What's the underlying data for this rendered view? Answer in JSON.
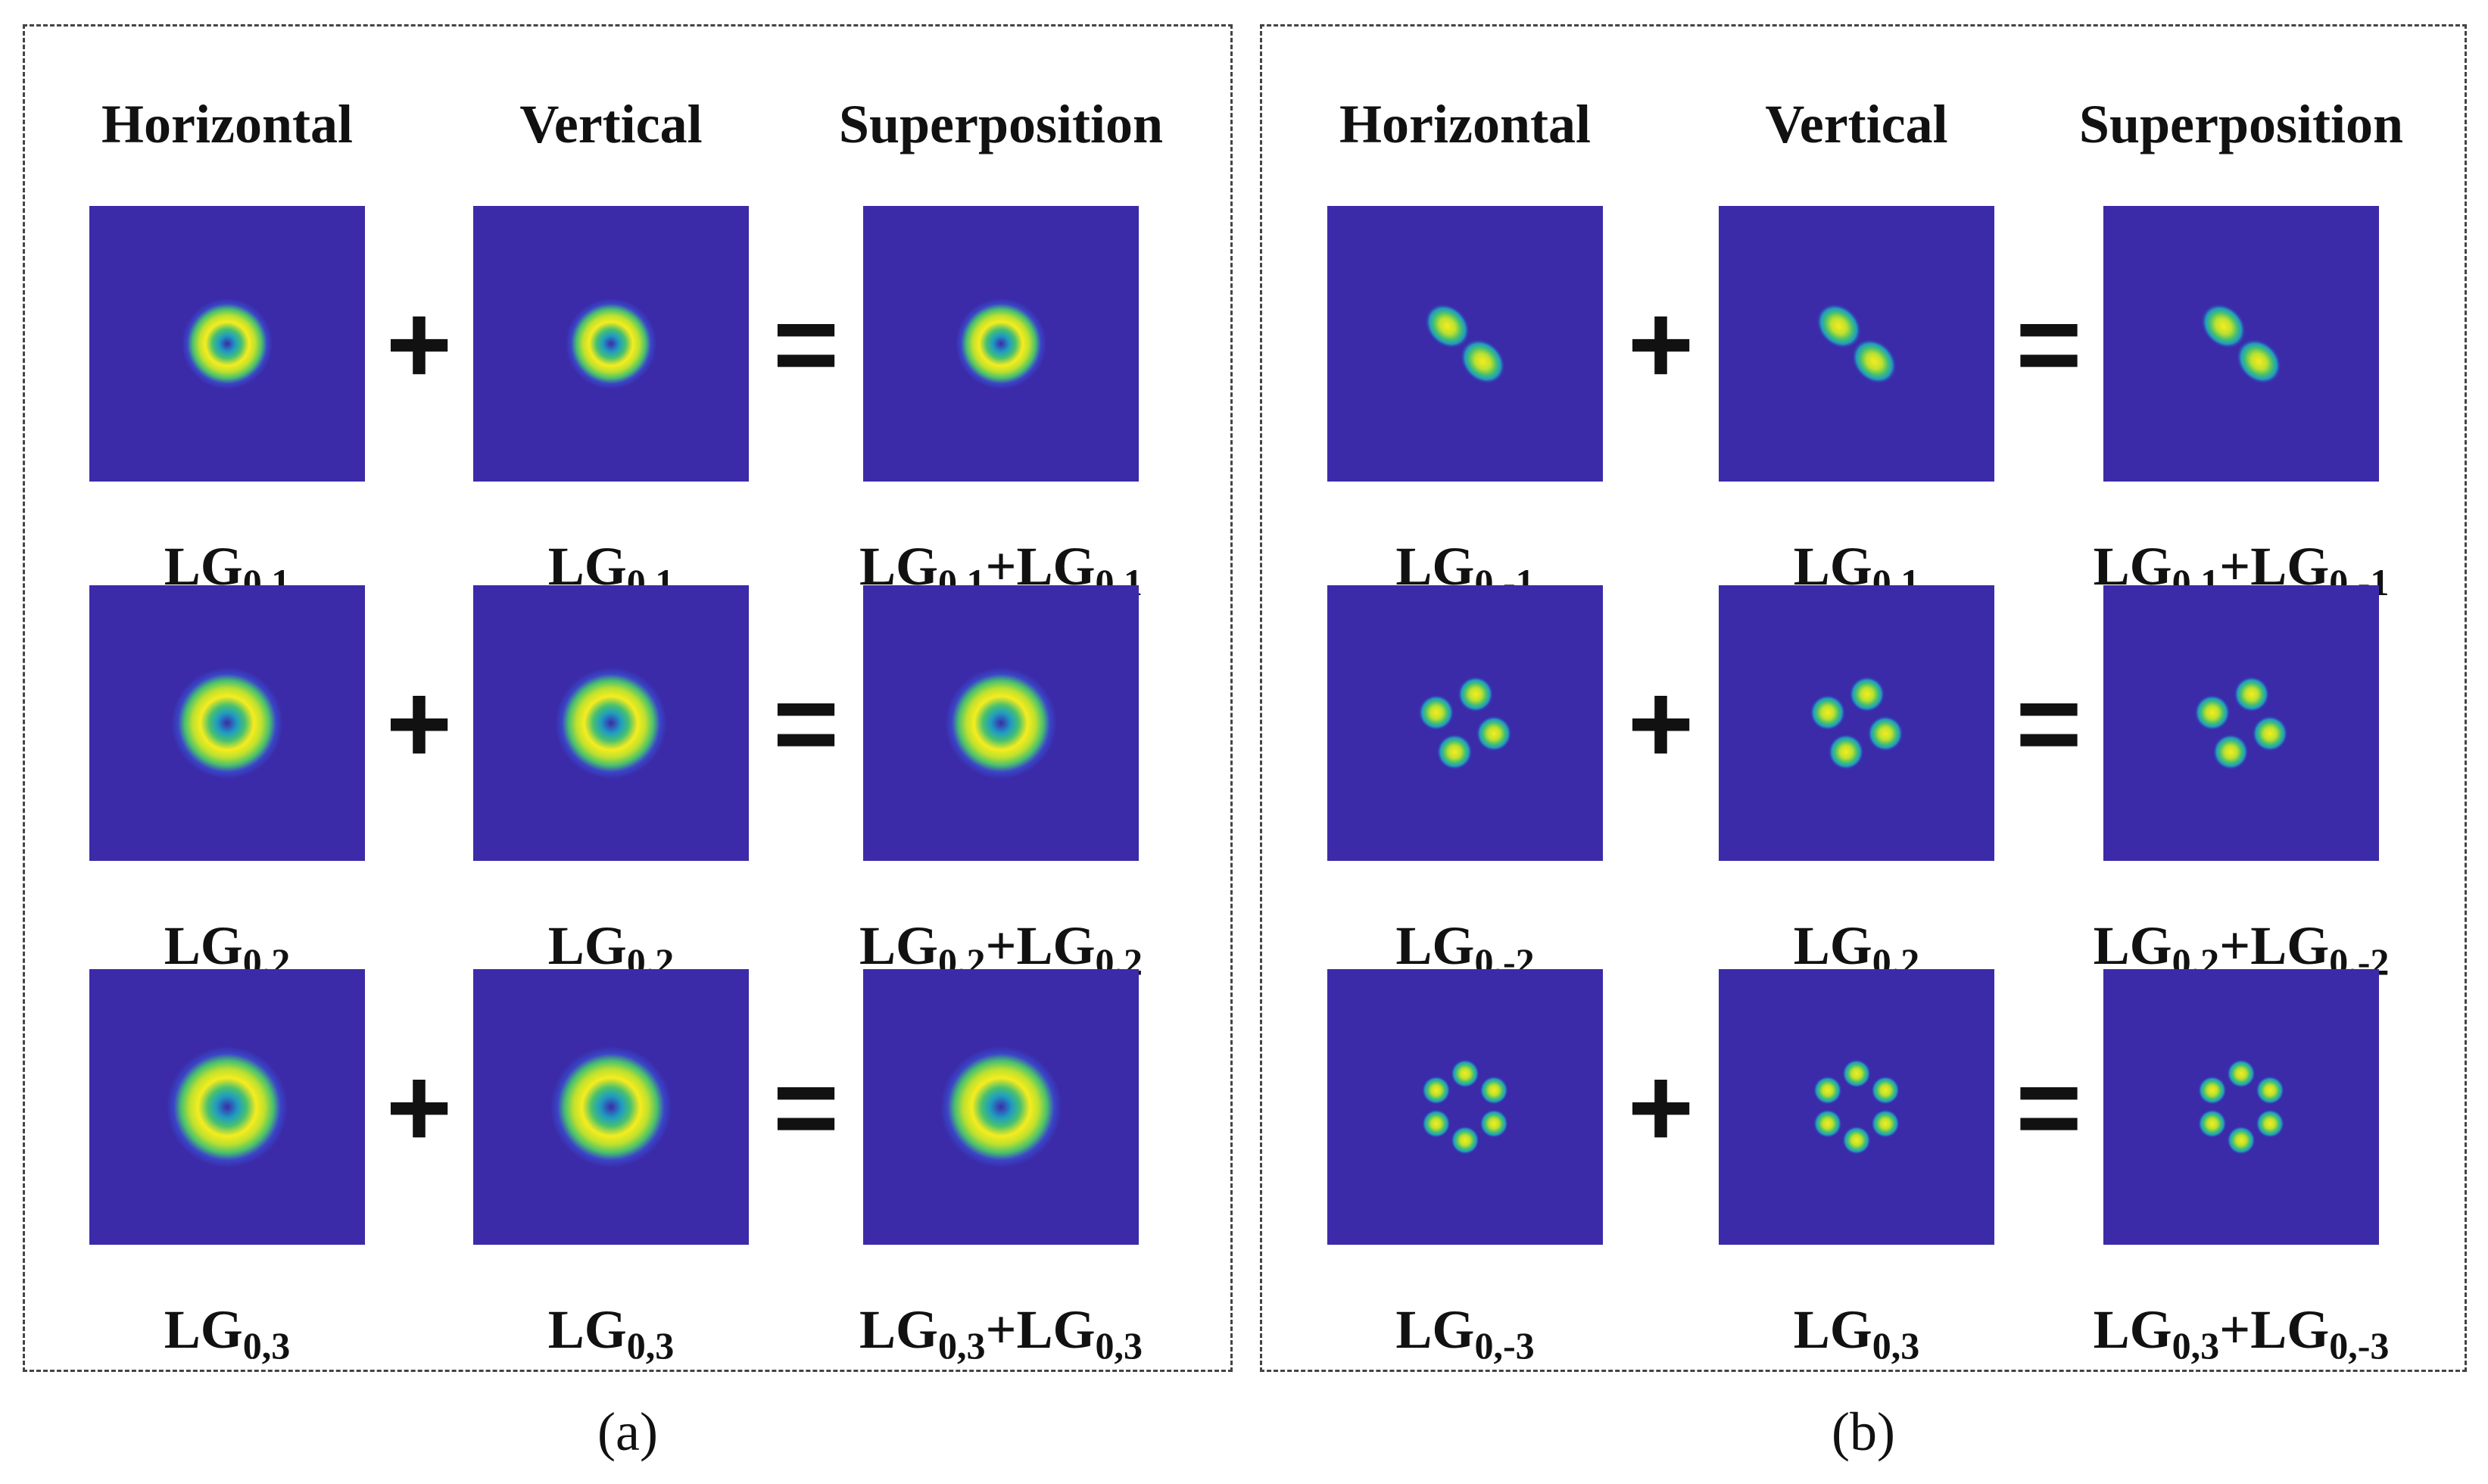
{
  "colors": {
    "background": "#3b2ba9",
    "ring_stops": [
      "#f6ec1e",
      "#bde12e",
      "#48c16e",
      "#1f9bc3",
      "#3a45c8",
      "#3b2ba9"
    ]
  },
  "panels": [
    {
      "caption": "(a)",
      "headers": {
        "horizontal": "Horizontal",
        "vertical": "Vertical",
        "superposition": "Superposition"
      },
      "operators": {
        "plus": "+",
        "equals": "="
      },
      "rows": [
        {
          "h": {
            "base": "LG",
            "sub": "0,1"
          },
          "v": {
            "base": "LG",
            "sub": "0,1"
          },
          "s": {
            "base1": "LG",
            "sub1": "0,1",
            "plus": "+",
            "base2": "LG",
            "sub2": "0,1"
          },
          "beam": {
            "ring_scale": 0.75,
            "lobes": 0
          }
        },
        {
          "h": {
            "base": "LG",
            "sub": "0,2"
          },
          "v": {
            "base": "LG",
            "sub": "0,2"
          },
          "s": {
            "base1": "LG",
            "sub1": "0,2",
            "plus": "+",
            "base2": "LG",
            "sub2": "0,2"
          },
          "beam": {
            "ring_scale": 0.92,
            "lobes": 0
          }
        },
        {
          "h": {
            "base": "LG",
            "sub": "0,3"
          },
          "v": {
            "base": "LG",
            "sub": "0,3"
          },
          "s": {
            "base1": "LG",
            "sub1": "0,3",
            "plus": "+",
            "base2": "LG",
            "sub2": "0,3"
          },
          "beam": {
            "ring_scale": 1.0,
            "lobes": 0
          }
        }
      ]
    },
    {
      "caption": "(b)",
      "headers": {
        "horizontal": "Horizontal",
        "vertical": "Vertical",
        "superposition": "Superposition"
      },
      "operators": {
        "plus": "+",
        "equals": "="
      },
      "rows": [
        {
          "h": {
            "base": "LG",
            "sub": "0,-1"
          },
          "v": {
            "base": "LG",
            "sub": "0,1"
          },
          "s": {
            "base1": "LG",
            "sub1": "0,1",
            "plus": "+",
            "base2": "LG",
            "sub2": "0,-1"
          },
          "beam": {
            "ring_scale": 0.75,
            "lobes": 2
          }
        },
        {
          "h": {
            "base": "LG",
            "sub": "0,-2"
          },
          "v": {
            "base": "LG",
            "sub": "0,2"
          },
          "s": {
            "base1": "LG",
            "sub1": "0,2",
            "plus": "+",
            "base2": "LG",
            "sub2": "0,-2"
          },
          "beam": {
            "ring_scale": 0.92,
            "lobes": 4
          }
        },
        {
          "h": {
            "base": "LG",
            "sub": "0,-3"
          },
          "v": {
            "base": "LG",
            "sub": "0,3"
          },
          "s": {
            "base1": "LG",
            "sub1": "0,3",
            "plus": "+",
            "base2": "LG",
            "sub2": "0,-3"
          },
          "beam": {
            "ring_scale": 1.0,
            "lobes": 6
          }
        }
      ]
    }
  ]
}
